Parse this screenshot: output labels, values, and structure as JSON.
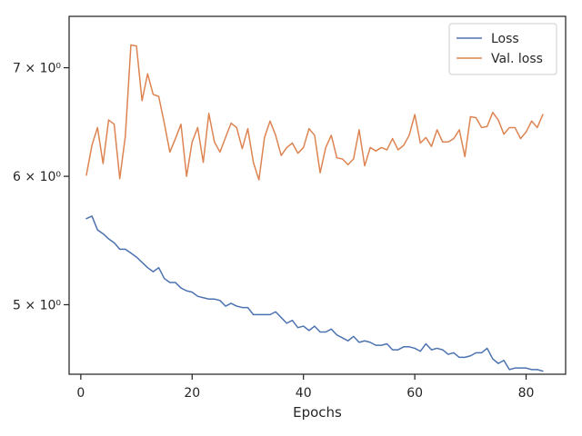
{
  "chart_data": {
    "type": "line",
    "title": "",
    "xlabel": "Epochs",
    "ylabel": "",
    "y_scale": "log",
    "xlim": [
      -2.1,
      87.1
    ],
    "ylim": [
      4.53,
      7.53
    ],
    "x_ticks": [
      0,
      20,
      40,
      60,
      80
    ],
    "x_tick_labels": [
      "0",
      "20",
      "40",
      "60",
      "80"
    ],
    "y_ticks": [
      5,
      6,
      7
    ],
    "y_tick_labels": [
      "5 × 10⁰",
      "6 × 10⁰",
      "7 × 10⁰"
    ],
    "legend_position": "top-right",
    "grid": false,
    "series": [
      {
        "name": "Loss",
        "color": "#4c72b0",
        "x": [
          1,
          2,
          3,
          4,
          5,
          6,
          7,
          8,
          9,
          10,
          11,
          12,
          13,
          14,
          15,
          16,
          17,
          18,
          19,
          20,
          21,
          22,
          23,
          24,
          25,
          26,
          27,
          28,
          29,
          30,
          31,
          32,
          33,
          34,
          35,
          36,
          37,
          38,
          39,
          40,
          41,
          42,
          43,
          44,
          45,
          46,
          47,
          48,
          49,
          50,
          51,
          52,
          53,
          54,
          55,
          56,
          57,
          58,
          59,
          60,
          61,
          62,
          63,
          64,
          65,
          66,
          67,
          68,
          69,
          70,
          71,
          72,
          73,
          74,
          75,
          76,
          77,
          78,
          79,
          80,
          81,
          82,
          83
        ],
        "y": [
          5.65,
          5.67,
          5.56,
          5.53,
          5.49,
          5.46,
          5.41,
          5.41,
          5.38,
          5.35,
          5.31,
          5.27,
          5.24,
          5.27,
          5.19,
          5.16,
          5.16,
          5.12,
          5.1,
          5.09,
          5.06,
          5.05,
          5.04,
          5.04,
          5.03,
          4.99,
          5.01,
          4.99,
          4.98,
          4.98,
          4.93,
          4.93,
          4.93,
          4.93,
          4.95,
          4.91,
          4.87,
          4.89,
          4.84,
          4.85,
          4.82,
          4.85,
          4.81,
          4.81,
          4.83,
          4.79,
          4.77,
          4.75,
          4.78,
          4.74,
          4.75,
          4.74,
          4.72,
          4.72,
          4.73,
          4.69,
          4.69,
          4.71,
          4.71,
          4.7,
          4.68,
          4.73,
          4.69,
          4.7,
          4.69,
          4.66,
          4.67,
          4.64,
          4.64,
          4.65,
          4.67,
          4.67,
          4.7,
          4.63,
          4.6,
          4.62,
          4.56,
          4.57,
          4.57,
          4.57,
          4.56,
          4.56,
          4.55
        ]
      },
      {
        "name": "Val. loss",
        "color": "#dd8452",
        "x": [
          1,
          2,
          3,
          4,
          5,
          6,
          7,
          8,
          9,
          10,
          11,
          12,
          13,
          14,
          15,
          16,
          17,
          18,
          19,
          20,
          21,
          22,
          23,
          24,
          25,
          26,
          27,
          28,
          29,
          30,
          31,
          32,
          33,
          34,
          35,
          36,
          37,
          38,
          39,
          40,
          41,
          42,
          43,
          44,
          45,
          46,
          47,
          48,
          49,
          50,
          51,
          52,
          53,
          54,
          55,
          56,
          57,
          58,
          59,
          60,
          61,
          62,
          63,
          64,
          65,
          66,
          67,
          68,
          69,
          70,
          71,
          72,
          73,
          74,
          75,
          76,
          77,
          78,
          79,
          80,
          81,
          82,
          83
        ],
        "y": [
          6.01,
          6.27,
          6.43,
          6.11,
          6.5,
          6.46,
          5.98,
          6.35,
          7.23,
          7.22,
          6.68,
          6.94,
          6.74,
          6.72,
          6.47,
          6.21,
          6.33,
          6.46,
          6.0,
          6.3,
          6.43,
          6.12,
          6.56,
          6.3,
          6.21,
          6.34,
          6.47,
          6.43,
          6.24,
          6.42,
          6.12,
          5.97,
          6.34,
          6.49,
          6.36,
          6.18,
          6.25,
          6.29,
          6.2,
          6.25,
          6.42,
          6.36,
          6.03,
          6.25,
          6.36,
          6.16,
          6.15,
          6.1,
          6.15,
          6.41,
          6.09,
          6.25,
          6.22,
          6.25,
          6.23,
          6.33,
          6.23,
          6.27,
          6.36,
          6.55,
          6.29,
          6.34,
          6.26,
          6.41,
          6.3,
          6.3,
          6.33,
          6.41,
          6.17,
          6.53,
          6.52,
          6.43,
          6.44,
          6.57,
          6.5,
          6.37,
          6.43,
          6.43,
          6.33,
          6.39,
          6.49,
          6.43,
          6.55
        ]
      }
    ]
  }
}
